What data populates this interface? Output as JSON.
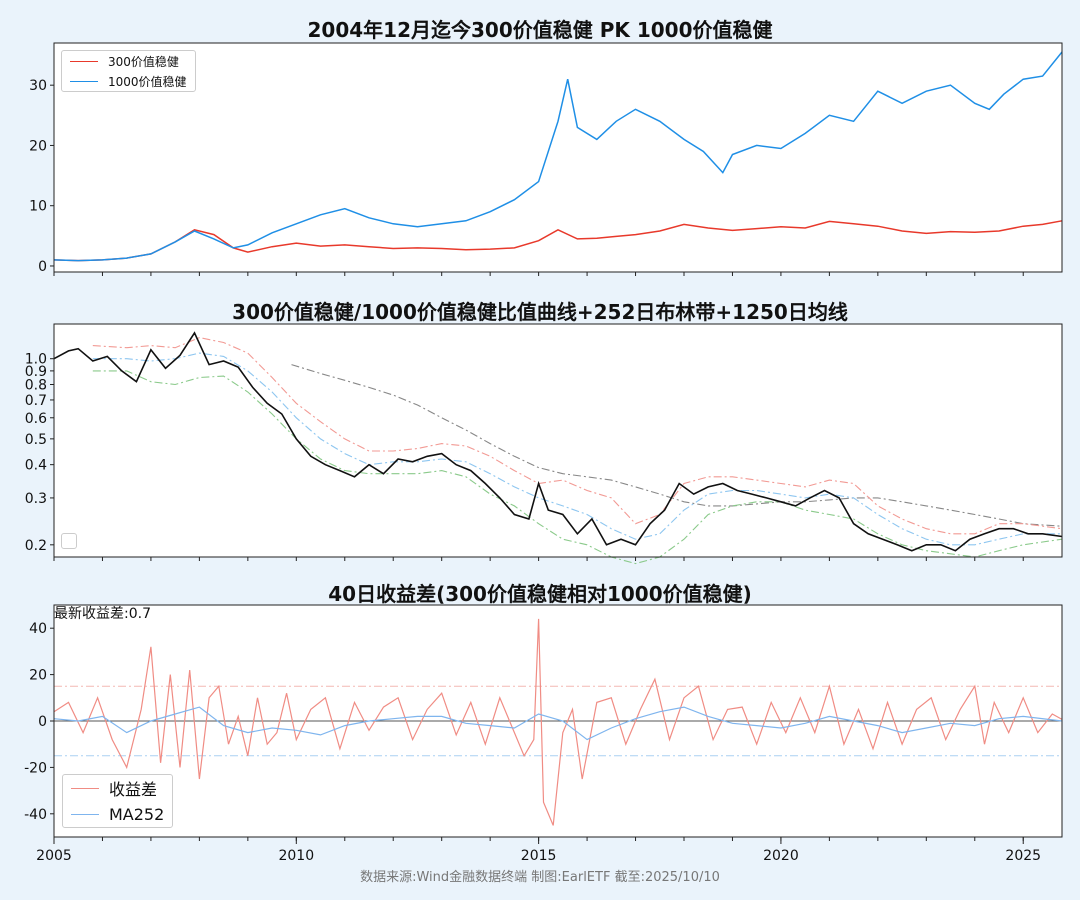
{
  "titles": {
    "top": "2004年12月迄今300价值稳健 PK 1000价值稳健",
    "mid": "300价值稳健/1000价值稳健比值曲线+252日布林带+1250日均线",
    "bottom": "40日收益差(300价值稳健相对1000价值稳健)"
  },
  "latest_annotation": "最新收益差:0.7",
  "footer": "数据来源:Wind金融数据终端  制图:EarlETF 截至:2025/10/10",
  "colors": {
    "red": "#e8392b",
    "blue": "#1f8fe6",
    "black": "#111111",
    "band_red": "#f29a94",
    "band_blue": "#8ec6f0",
    "band_green": "#8bca8b",
    "ma_gray": "#888888",
    "diff_pink": "#f08c84",
    "ma252_blue": "#7fb5ee"
  },
  "chart_data": [
    {
      "type": "line",
      "title": "2004年12月迄今300价值稳健 PK 1000价值稳健",
      "x_range": [
        2005,
        2025.8
      ],
      "ylim": [
        -1,
        37
      ],
      "y_ticks": [
        0,
        10,
        20,
        30
      ],
      "legend": "top-left",
      "series": [
        {
          "name": "300价值稳健",
          "x": [
            2005.0,
            2005.5,
            2006.0,
            2006.5,
            2007.0,
            2007.5,
            2007.9,
            2008.3,
            2008.7,
            2009.0,
            2009.5,
            2010.0,
            2010.5,
            2011.0,
            2011.5,
            2012.0,
            2012.5,
            2013.0,
            2013.5,
            2014.0,
            2014.5,
            2015.0,
            2015.4,
            2015.8,
            2016.2,
            2016.6,
            2017.0,
            2017.5,
            2018.0,
            2018.5,
            2019.0,
            2019.5,
            2020.0,
            2020.5,
            2021.0,
            2021.5,
            2022.0,
            2022.5,
            2023.0,
            2023.5,
            2024.0,
            2024.5,
            2025.0,
            2025.4,
            2025.8
          ],
          "y": [
            1.0,
            0.9,
            1.0,
            1.3,
            2.0,
            4.0,
            6.0,
            5.2,
            3.0,
            2.3,
            3.2,
            3.8,
            3.3,
            3.5,
            3.2,
            2.9,
            3.0,
            2.9,
            2.7,
            2.8,
            3.0,
            4.2,
            6.0,
            4.5,
            4.6,
            4.9,
            5.2,
            5.8,
            6.9,
            6.3,
            5.9,
            6.2,
            6.5,
            6.3,
            7.4,
            7.0,
            6.6,
            5.8,
            5.4,
            5.7,
            5.6,
            5.8,
            6.6,
            6.9,
            7.5
          ]
        },
        {
          "name": "1000价值稳健",
          "x": [
            2005.0,
            2005.5,
            2006.0,
            2006.5,
            2007.0,
            2007.5,
            2007.9,
            2008.3,
            2008.7,
            2009.0,
            2009.5,
            2010.0,
            2010.5,
            2011.0,
            2011.5,
            2012.0,
            2012.5,
            2013.0,
            2013.5,
            2014.0,
            2014.5,
            2015.0,
            2015.4,
            2015.6,
            2015.8,
            2016.2,
            2016.6,
            2017.0,
            2017.5,
            2018.0,
            2018.4,
            2018.8,
            2019.0,
            2019.5,
            2020.0,
            2020.5,
            2021.0,
            2021.5,
            2022.0,
            2022.5,
            2023.0,
            2023.5,
            2024.0,
            2024.3,
            2024.6,
            2025.0,
            2025.4,
            2025.8
          ],
          "y": [
            1.0,
            0.9,
            1.0,
            1.3,
            2.0,
            4.0,
            5.8,
            4.5,
            3.0,
            3.5,
            5.5,
            7.0,
            8.5,
            9.5,
            8.0,
            7.0,
            6.5,
            7.0,
            7.5,
            9.0,
            11.0,
            14.0,
            24.0,
            31.0,
            23.0,
            21.0,
            24.0,
            26.0,
            24.0,
            21.0,
            19.0,
            15.5,
            18.5,
            20.0,
            19.5,
            22.0,
            25.0,
            24.0,
            29.0,
            27.0,
            29.0,
            30.0,
            27.0,
            26.0,
            28.5,
            31.0,
            31.5,
            35.5
          ]
        }
      ]
    },
    {
      "type": "line",
      "title": "300价值稳健/1000价值稳健比值曲线+252日布林带+1250日均线",
      "x_range": [
        2005,
        2025.8
      ],
      "y_scale": "log",
      "ylim": [
        0.18,
        1.35
      ],
      "y_ticks": [
        0.2,
        0.3,
        0.4,
        0.5,
        0.6,
        0.7,
        0.8,
        0.9,
        1.0
      ],
      "legend": "bottom-left",
      "series": [
        {
          "role": "ratio",
          "x": [
            2005.0,
            2005.3,
            2005.5,
            2005.8,
            2006.1,
            2006.4,
            2006.7,
            2007.0,
            2007.3,
            2007.6,
            2007.9,
            2008.2,
            2008.5,
            2008.8,
            2009.1,
            2009.4,
            2009.7,
            2010.0,
            2010.3,
            2010.6,
            2010.9,
            2011.2,
            2011.5,
            2011.8,
            2012.1,
            2012.4,
            2012.7,
            2013.0,
            2013.3,
            2013.6,
            2013.9,
            2014.2,
            2014.5,
            2014.8,
            2015.0,
            2015.2,
            2015.5,
            2015.8,
            2016.1,
            2016.4,
            2016.7,
            2017.0,
            2017.3,
            2017.6,
            2017.9,
            2018.2,
            2018.5,
            2018.8,
            2019.1,
            2019.4,
            2019.7,
            2020.0,
            2020.3,
            2020.6,
            2020.9,
            2021.2,
            2021.5,
            2021.8,
            2022.1,
            2022.4,
            2022.7,
            2023.0,
            2023.3,
            2023.6,
            2023.9,
            2024.2,
            2024.5,
            2024.8,
            2025.1,
            2025.4,
            2025.8
          ],
          "y": [
            1.0,
            1.07,
            1.09,
            0.98,
            1.02,
            0.9,
            0.82,
            1.08,
            0.92,
            1.03,
            1.25,
            0.95,
            0.98,
            0.93,
            0.78,
            0.68,
            0.62,
            0.5,
            0.43,
            0.4,
            0.38,
            0.36,
            0.4,
            0.37,
            0.42,
            0.41,
            0.43,
            0.44,
            0.4,
            0.38,
            0.34,
            0.3,
            0.26,
            0.25,
            0.34,
            0.27,
            0.26,
            0.22,
            0.25,
            0.2,
            0.21,
            0.2,
            0.24,
            0.27,
            0.34,
            0.31,
            0.33,
            0.34,
            0.32,
            0.31,
            0.3,
            0.29,
            0.28,
            0.3,
            0.32,
            0.3,
            0.24,
            0.22,
            0.21,
            0.2,
            0.19,
            0.2,
            0.2,
            0.19,
            0.21,
            0.22,
            0.23,
            0.23,
            0.22,
            0.22,
            0.215
          ]
        },
        {
          "role": "upper-band",
          "x": [
            2005.8,
            2006.5,
            2007.0,
            2007.5,
            2008.0,
            2008.5,
            2009.0,
            2009.5,
            2010.0,
            2010.5,
            2011.0,
            2011.5,
            2012.0,
            2012.5,
            2013.0,
            2013.5,
            2014.0,
            2014.5,
            2015.0,
            2015.5,
            2016.0,
            2016.5,
            2017.0,
            2017.5,
            2018.0,
            2018.5,
            2019.0,
            2019.5,
            2020.0,
            2020.5,
            2021.0,
            2021.5,
            2022.0,
            2022.5,
            2023.0,
            2023.5,
            2024.0,
            2024.5,
            2025.0,
            2025.8
          ],
          "y": [
            1.12,
            1.1,
            1.12,
            1.1,
            1.2,
            1.15,
            1.05,
            0.85,
            0.68,
            0.58,
            0.5,
            0.45,
            0.45,
            0.46,
            0.48,
            0.47,
            0.43,
            0.38,
            0.34,
            0.35,
            0.32,
            0.3,
            0.24,
            0.26,
            0.34,
            0.36,
            0.36,
            0.35,
            0.34,
            0.33,
            0.35,
            0.34,
            0.28,
            0.25,
            0.23,
            0.22,
            0.22,
            0.24,
            0.24,
            0.23
          ]
        },
        {
          "role": "middle-band",
          "x": [
            2005.8,
            2006.5,
            2007.0,
            2007.5,
            2008.0,
            2008.5,
            2009.0,
            2009.5,
            2010.0,
            2010.5,
            2011.0,
            2011.5,
            2012.0,
            2012.5,
            2013.0,
            2013.5,
            2014.0,
            2014.5,
            2015.0,
            2015.5,
            2016.0,
            2016.5,
            2017.0,
            2017.5,
            2018.0,
            2018.5,
            2019.0,
            2019.5,
            2020.0,
            2020.5,
            2021.0,
            2021.5,
            2022.0,
            2022.5,
            2023.0,
            2023.5,
            2024.0,
            2024.5,
            2025.0,
            2025.8
          ],
          "y": [
            1.0,
            1.0,
            0.98,
            1.0,
            1.05,
            1.02,
            0.9,
            0.75,
            0.6,
            0.5,
            0.44,
            0.4,
            0.41,
            0.41,
            0.42,
            0.41,
            0.37,
            0.33,
            0.3,
            0.28,
            0.26,
            0.23,
            0.21,
            0.22,
            0.27,
            0.31,
            0.32,
            0.32,
            0.31,
            0.3,
            0.31,
            0.3,
            0.26,
            0.23,
            0.21,
            0.2,
            0.2,
            0.21,
            0.22,
            0.22
          ]
        },
        {
          "role": "lower-band",
          "x": [
            2005.8,
            2006.5,
            2007.0,
            2007.5,
            2008.0,
            2008.5,
            2009.0,
            2009.5,
            2010.0,
            2010.5,
            2011.0,
            2011.5,
            2012.0,
            2012.5,
            2013.0,
            2013.5,
            2014.0,
            2014.5,
            2015.0,
            2015.5,
            2016.0,
            2016.5,
            2017.0,
            2017.5,
            2018.0,
            2018.5,
            2019.0,
            2019.5,
            2020.0,
            2020.5,
            2021.0,
            2021.5,
            2022.0,
            2022.5,
            2023.0,
            2023.5,
            2024.0,
            2024.5,
            2025.0,
            2025.8
          ],
          "y": [
            0.9,
            0.9,
            0.82,
            0.8,
            0.85,
            0.86,
            0.75,
            0.62,
            0.5,
            0.42,
            0.38,
            0.37,
            0.37,
            0.37,
            0.38,
            0.36,
            0.31,
            0.28,
            0.24,
            0.21,
            0.2,
            0.18,
            0.17,
            0.18,
            0.21,
            0.26,
            0.28,
            0.29,
            0.29,
            0.27,
            0.26,
            0.25,
            0.22,
            0.2,
            0.19,
            0.185,
            0.18,
            0.19,
            0.2,
            0.21
          ]
        },
        {
          "role": "ma1250",
          "x": [
            2009.9,
            2010.5,
            2011.0,
            2011.5,
            2012.0,
            2012.5,
            2013.0,
            2013.5,
            2014.0,
            2014.5,
            2015.0,
            2015.5,
            2016.0,
            2016.5,
            2017.0,
            2017.5,
            2018.0,
            2018.5,
            2019.0,
            2019.5,
            2020.0,
            2020.5,
            2021.0,
            2021.5,
            2022.0,
            2022.5,
            2023.0,
            2023.5,
            2024.0,
            2024.5,
            2025.0,
            2025.8
          ],
          "y": [
            0.95,
            0.88,
            0.83,
            0.78,
            0.73,
            0.67,
            0.6,
            0.54,
            0.48,
            0.43,
            0.39,
            0.37,
            0.36,
            0.35,
            0.33,
            0.31,
            0.29,
            0.28,
            0.28,
            0.285,
            0.29,
            0.29,
            0.295,
            0.3,
            0.3,
            0.29,
            0.28,
            0.27,
            0.26,
            0.25,
            0.24,
            0.235
          ]
        }
      ]
    },
    {
      "type": "line",
      "title": "40日收益差(300价值稳健相对1000价值稳健)",
      "x_range": [
        2005,
        2025.8
      ],
      "x_ticks": [
        2005,
        2010,
        2015,
        2020,
        2025
      ],
      "ylim": [
        -50,
        50
      ],
      "y_ticks": [
        -40,
        -20,
        0,
        20,
        40
      ],
      "reference_lines": [
        15,
        0,
        -15
      ],
      "legend": "bottom-left",
      "series": [
        {
          "name": "收益差",
          "x": [
            2005.0,
            2005.3,
            2005.6,
            2005.9,
            2006.2,
            2006.5,
            2006.8,
            2007.0,
            2007.2,
            2007.4,
            2007.6,
            2007.8,
            2008.0,
            2008.2,
            2008.4,
            2008.6,
            2008.8,
            2009.0,
            2009.2,
            2009.4,
            2009.6,
            2009.8,
            2010.0,
            2010.3,
            2010.6,
            2010.9,
            2011.2,
            2011.5,
            2011.8,
            2012.1,
            2012.4,
            2012.7,
            2013.0,
            2013.3,
            2013.6,
            2013.9,
            2014.2,
            2014.5,
            2014.7,
            2014.9,
            2015.0,
            2015.1,
            2015.3,
            2015.5,
            2015.7,
            2015.9,
            2016.2,
            2016.5,
            2016.8,
            2017.1,
            2017.4,
            2017.7,
            2018.0,
            2018.3,
            2018.6,
            2018.9,
            2019.2,
            2019.5,
            2019.8,
            2020.1,
            2020.4,
            2020.7,
            2021.0,
            2021.3,
            2021.6,
            2021.9,
            2022.2,
            2022.5,
            2022.8,
            2023.1,
            2023.4,
            2023.7,
            2024.0,
            2024.2,
            2024.4,
            2024.7,
            2025.0,
            2025.3,
            2025.6,
            2025.8
          ],
          "y": [
            4,
            8,
            -5,
            10,
            -8,
            -20,
            5,
            32,
            -18,
            20,
            -20,
            22,
            -25,
            10,
            15,
            -10,
            2,
            -15,
            10,
            -10,
            -5,
            12,
            -8,
            5,
            10,
            -12,
            8,
            -4,
            6,
            10,
            -8,
            5,
            12,
            -6,
            8,
            -10,
            10,
            -5,
            -15,
            -8,
            44,
            -35,
            -45,
            -5,
            5,
            -25,
            8,
            10,
            -10,
            5,
            18,
            -8,
            10,
            15,
            -8,
            5,
            6,
            -10,
            8,
            -5,
            10,
            -5,
            15,
            -10,
            5,
            -12,
            8,
            -10,
            5,
            10,
            -8,
            5,
            15,
            -10,
            8,
            -5,
            10,
            -5,
            3,
            0.7
          ]
        },
        {
          "name": "MA252",
          "x": [
            2005.0,
            2005.5,
            2006.0,
            2006.5,
            2007.0,
            2007.5,
            2008.0,
            2008.5,
            2009.0,
            2009.5,
            2010.0,
            2010.5,
            2011.0,
            2011.5,
            2012.0,
            2012.5,
            2013.0,
            2013.5,
            2014.0,
            2014.5,
            2015.0,
            2015.5,
            2016.0,
            2016.5,
            2017.0,
            2017.5,
            2018.0,
            2018.5,
            2019.0,
            2019.5,
            2020.0,
            2020.5,
            2021.0,
            2021.5,
            2022.0,
            2022.5,
            2023.0,
            2023.5,
            2024.0,
            2024.5,
            2025.0,
            2025.8
          ],
          "y": [
            1,
            0,
            2,
            -5,
            0,
            3,
            6,
            -2,
            -5,
            -3,
            -4,
            -6,
            -2,
            0,
            1,
            2,
            2,
            -1,
            -2,
            -3,
            3,
            0,
            -8,
            -3,
            1,
            4,
            6,
            2,
            -1,
            -2,
            -3,
            -1,
            2,
            0,
            -2,
            -5,
            -3,
            -1,
            -2,
            1,
            2,
            0
          ]
        }
      ]
    }
  ]
}
